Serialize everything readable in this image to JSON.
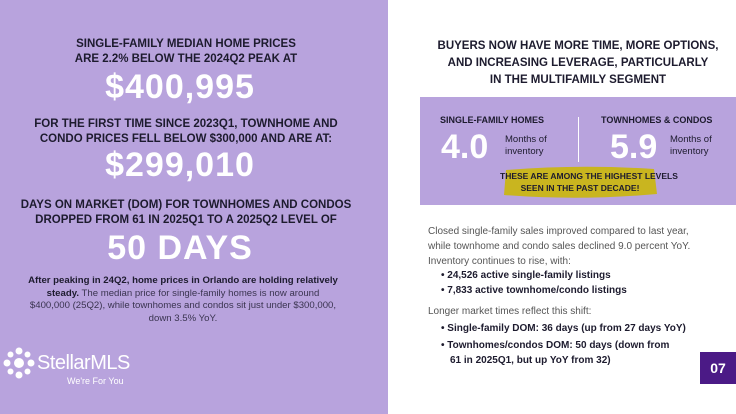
{
  "left": {
    "headline_1": [
      "SINGLE-FAMILY MEDIAN HOME PRICES",
      "ARE 2.2% BELOW THE 2024Q2 PEAK AT"
    ],
    "value_1": "$400,995",
    "headline_2": [
      "FOR THE FIRST TIME SINCE 2023Q1, TOWNHOME AND",
      "CONDO PRICES FELL BELOW $300,000 AND ARE AT:"
    ],
    "value_2": "$299,010",
    "headline_3": [
      "DAYS ON MARKET (DOM) FOR TOWNHOMES AND CONDOS",
      "DROPPED FROM 61 IN 2025Q1 TO A 2025Q2 LEVEL OF"
    ],
    "value_3": "50 DAYS",
    "summary_bold": "After peaking in 24Q2, home prices in Orlando are holding relatively steady.",
    "summary": "The median price for single-family homes is now around $400,000 (25Q2), while townhomes and condos sit just under $300,000, down 3.5% YoY."
  },
  "logo": {
    "name": "StellarMLS",
    "tagline": "We're For You"
  },
  "right": {
    "heading": [
      "BUYERS NOW HAVE MORE TIME, MORE OPTIONS,",
      "AND INCREASING LEVERAGE, PARTICULARLY",
      "IN THE MULTIFAMILY SEGMENT"
    ],
    "inventory": [
      {
        "label": "SINGLE-FAMILY HOMES",
        "value": "4.0",
        "unit": [
          "Months of",
          "inventory"
        ]
      },
      {
        "label": "TOWNHOMES & CONDOS",
        "value": "5.9",
        "unit": [
          "Months of",
          "inventory"
        ]
      }
    ],
    "highlight": [
      "THESE ARE AMONG THE HIGHEST LEVELS",
      "SEEN IN THE PAST DECADE!"
    ],
    "paragraph": [
      "Closed single-family sales improved compared to last year,",
      "while townhome and condo sales declined 9.0 percent YoY.",
      "Inventory continues to rise, with:"
    ],
    "listings": [
      "24,526 active single-family listings",
      "7,833 active townhome/condo listings"
    ],
    "dom_intro": "Longer market times reflect this shift:",
    "dom": [
      [
        "Single-family DOM: 36 days (up from 27 days YoY)"
      ],
      [
        "Townhomes/condos DOM: 50 days (down from",
        "61 in 2025Q1, but up YoY from 32)"
      ]
    ]
  },
  "page_number": "07"
}
